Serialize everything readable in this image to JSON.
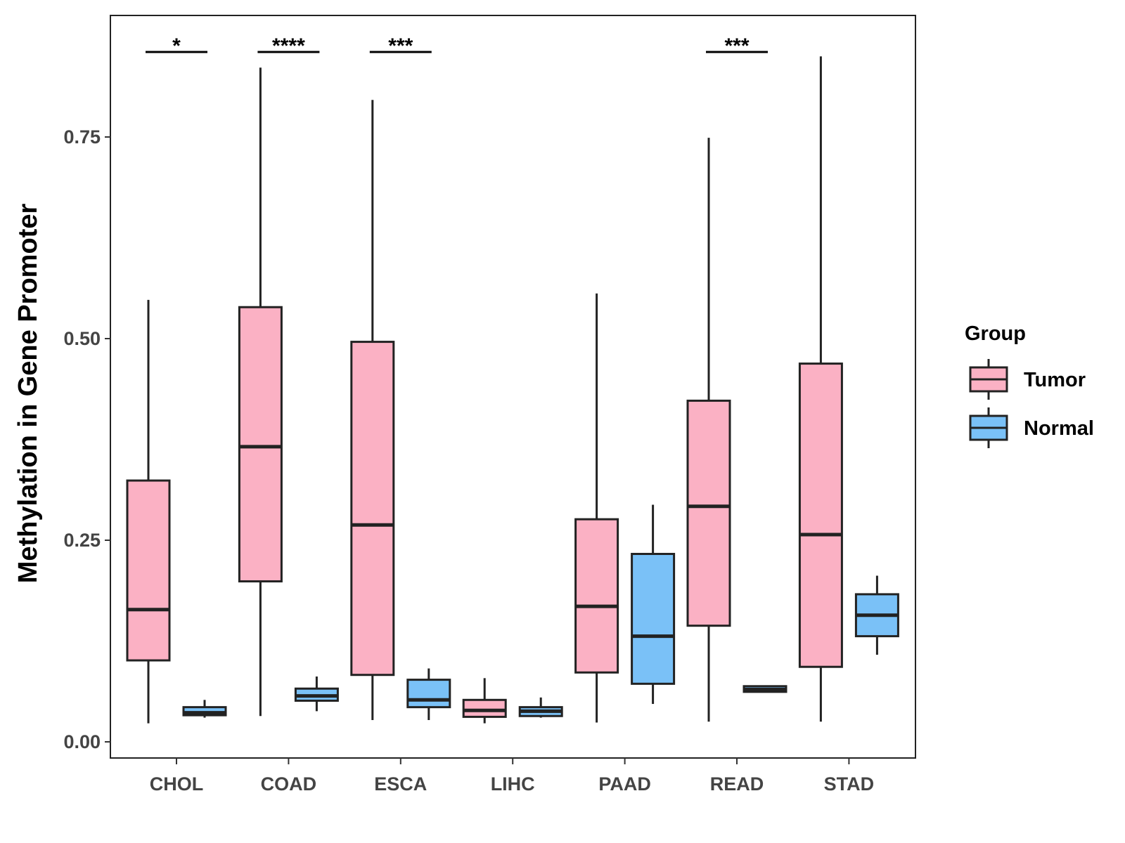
{
  "chart_data": {
    "type": "boxplot",
    "title": "",
    "xlabel": "",
    "ylabel": "Methylation in Gene Promoter",
    "ylim": [
      -0.02,
      0.9
    ],
    "yticks": [
      0.0,
      0.25,
      0.5,
      0.75
    ],
    "ytick_labels": [
      "0.00",
      "0.25",
      "0.50",
      "0.75"
    ],
    "categories": [
      "CHOL",
      "COAD",
      "ESCA",
      "LIHC",
      "PAAD",
      "READ",
      "STAD"
    ],
    "legend": {
      "title": "Group",
      "position": "right",
      "items": [
        {
          "name": "Tumor",
          "color": "#FBB1C4"
        },
        {
          "name": "Normal",
          "color": "#7AC1F7"
        }
      ]
    },
    "series": [
      {
        "name": "Tumor",
        "color": "#FBB1C4",
        "boxes": [
          {
            "category": "CHOL",
            "min": 0.023,
            "q1": 0.101,
            "median": 0.164,
            "q3": 0.324,
            "max": 0.548
          },
          {
            "category": "COAD",
            "min": 0.032,
            "q1": 0.199,
            "median": 0.366,
            "q3": 0.539,
            "max": 0.836
          },
          {
            "category": "ESCA",
            "min": 0.027,
            "q1": 0.083,
            "median": 0.269,
            "q3": 0.496,
            "max": 0.796
          },
          {
            "category": "LIHC",
            "min": 0.023,
            "q1": 0.031,
            "median": 0.039,
            "q3": 0.052,
            "max": 0.079
          },
          {
            "category": "PAAD",
            "min": 0.024,
            "q1": 0.086,
            "median": 0.168,
            "q3": 0.276,
            "max": 0.556
          },
          {
            "category": "READ",
            "min": 0.025,
            "q1": 0.144,
            "median": 0.292,
            "q3": 0.423,
            "max": 0.749
          },
          {
            "category": "STAD",
            "min": 0.025,
            "q1": 0.093,
            "median": 0.257,
            "q3": 0.469,
            "max": 0.85
          }
        ]
      },
      {
        "name": "Normal",
        "color": "#7AC1F7",
        "boxes": [
          {
            "category": "CHOL",
            "min": 0.03,
            "q1": 0.033,
            "median": 0.036,
            "q3": 0.043,
            "max": 0.052
          },
          {
            "category": "COAD",
            "min": 0.038,
            "q1": 0.051,
            "median": 0.057,
            "q3": 0.066,
            "max": 0.081
          },
          {
            "category": "ESCA",
            "min": 0.027,
            "q1": 0.043,
            "median": 0.052,
            "q3": 0.077,
            "max": 0.091
          },
          {
            "category": "LIHC",
            "min": 0.03,
            "q1": 0.032,
            "median": 0.038,
            "q3": 0.043,
            "max": 0.055
          },
          {
            "category": "PAAD",
            "min": 0.047,
            "q1": 0.072,
            "median": 0.131,
            "q3": 0.233,
            "max": 0.294
          },
          {
            "category": "READ",
            "min": 0.061,
            "q1": 0.062,
            "median": 0.065,
            "q3": 0.069,
            "max": 0.069
          },
          {
            "category": "STAD",
            "min": 0.108,
            "q1": 0.131,
            "median": 0.157,
            "q3": 0.183,
            "max": 0.206
          }
        ]
      }
    ],
    "significance": [
      {
        "category": "CHOL",
        "label": "*"
      },
      {
        "category": "COAD",
        "label": "****"
      },
      {
        "category": "ESCA",
        "label": "***"
      },
      {
        "category": "READ",
        "label": "***"
      }
    ]
  }
}
